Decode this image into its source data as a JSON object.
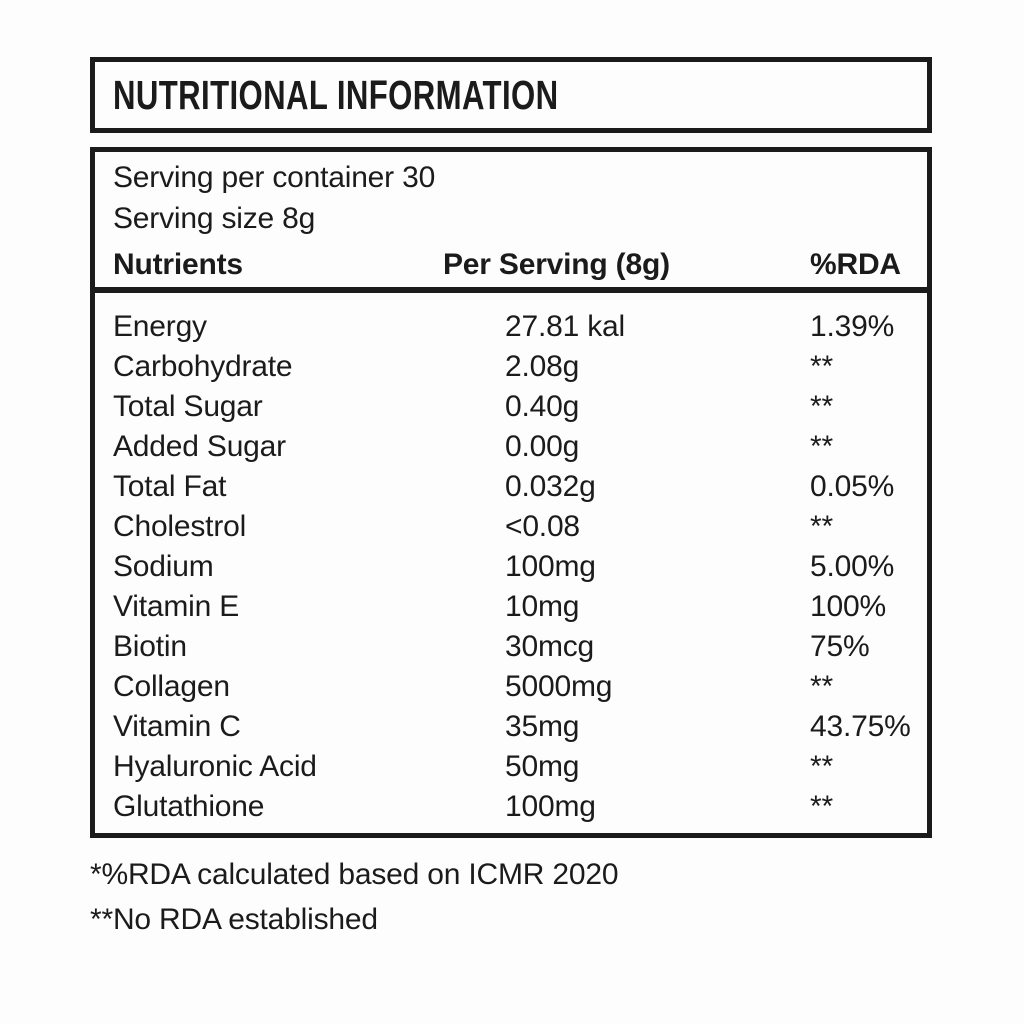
{
  "title": "NUTRITIONAL INFORMATION",
  "serving_info": {
    "per_container": "Serving per container 30",
    "size": "Serving size 8g"
  },
  "table": {
    "headers": {
      "nutrient": "Nutrients",
      "per_serving": "Per Serving (8g)",
      "rda": "%RDA"
    },
    "rows": [
      {
        "nutrient": "Energy",
        "per_serving": "27.81 kal",
        "rda": "1.39%"
      },
      {
        "nutrient": "Carbohydrate",
        "per_serving": "2.08g",
        "rda": "**"
      },
      {
        "nutrient": "Total Sugar",
        "per_serving": "0.40g",
        "rda": "**"
      },
      {
        "nutrient": "Added Sugar",
        "per_serving": "0.00g",
        "rda": "**"
      },
      {
        "nutrient": "Total Fat",
        "per_serving": "0.032g",
        "rda": "0.05%"
      },
      {
        "nutrient": "Cholestrol",
        "per_serving": "<0.08",
        "rda": "**"
      },
      {
        "nutrient": "Sodium",
        "per_serving": "100mg",
        "rda": "5.00%"
      },
      {
        "nutrient": "Vitamin E",
        "per_serving": "10mg",
        "rda": "100%"
      },
      {
        "nutrient": "Biotin",
        "per_serving": "30mcg",
        "rda": "75%"
      },
      {
        "nutrient": "Collagen",
        "per_serving": "5000mg",
        "rda": "**"
      },
      {
        "nutrient": "Vitamin C",
        "per_serving": "35mg",
        "rda": "43.75%"
      },
      {
        "nutrient": "Hyaluronic Acid",
        "per_serving": "50mg",
        "rda": "**"
      },
      {
        "nutrient": "Glutathione",
        "per_serving": "100mg",
        "rda": "**"
      }
    ]
  },
  "footnotes": [
    "*%RDA calculated based on ICMR 2020",
    "**No RDA established"
  ],
  "colors": {
    "text": "#1b1b1b",
    "border": "#1b1b1b",
    "background": "#fdfdfd"
  }
}
